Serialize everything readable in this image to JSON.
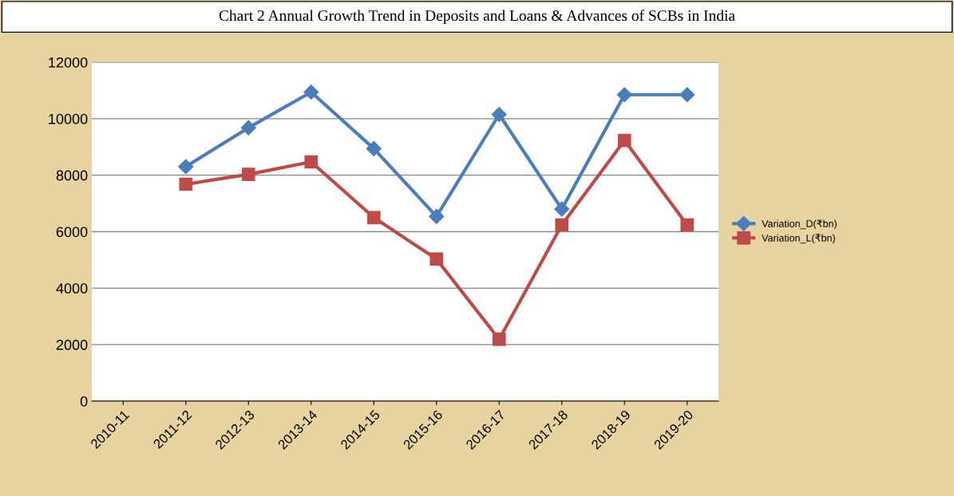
{
  "chart_data": {
    "type": "line",
    "title": "Chart 2 Annual Growth Trend in Deposits and Loans & Advances of SCBs in India",
    "categories": [
      "2010-11",
      "2011-12",
      "2012-13",
      "2013-14",
      "2014-15",
      "2015-16",
      "2016-17",
      "2017-18",
      "2018-19",
      "2019-20"
    ],
    "series": [
      {
        "name": "Variation_D(₹bn)",
        "color": "#4a7ebb",
        "marker": "diamond",
        "values": [
          null,
          8300,
          9680,
          10940,
          8940,
          6540,
          10150,
          6800,
          10850,
          10850
        ]
      },
      {
        "name": "Variation_L(₹bn)",
        "color": "#be4b48",
        "marker": "square",
        "values": [
          null,
          7680,
          8030,
          8470,
          6500,
          5030,
          2190,
          6240,
          9230,
          6240
        ]
      }
    ],
    "ylim": [
      0,
      12000
    ],
    "yticks": [
      0,
      2000,
      4000,
      6000,
      8000,
      10000,
      12000
    ],
    "grid": "y",
    "legend": "right",
    "line_style": "solid"
  }
}
